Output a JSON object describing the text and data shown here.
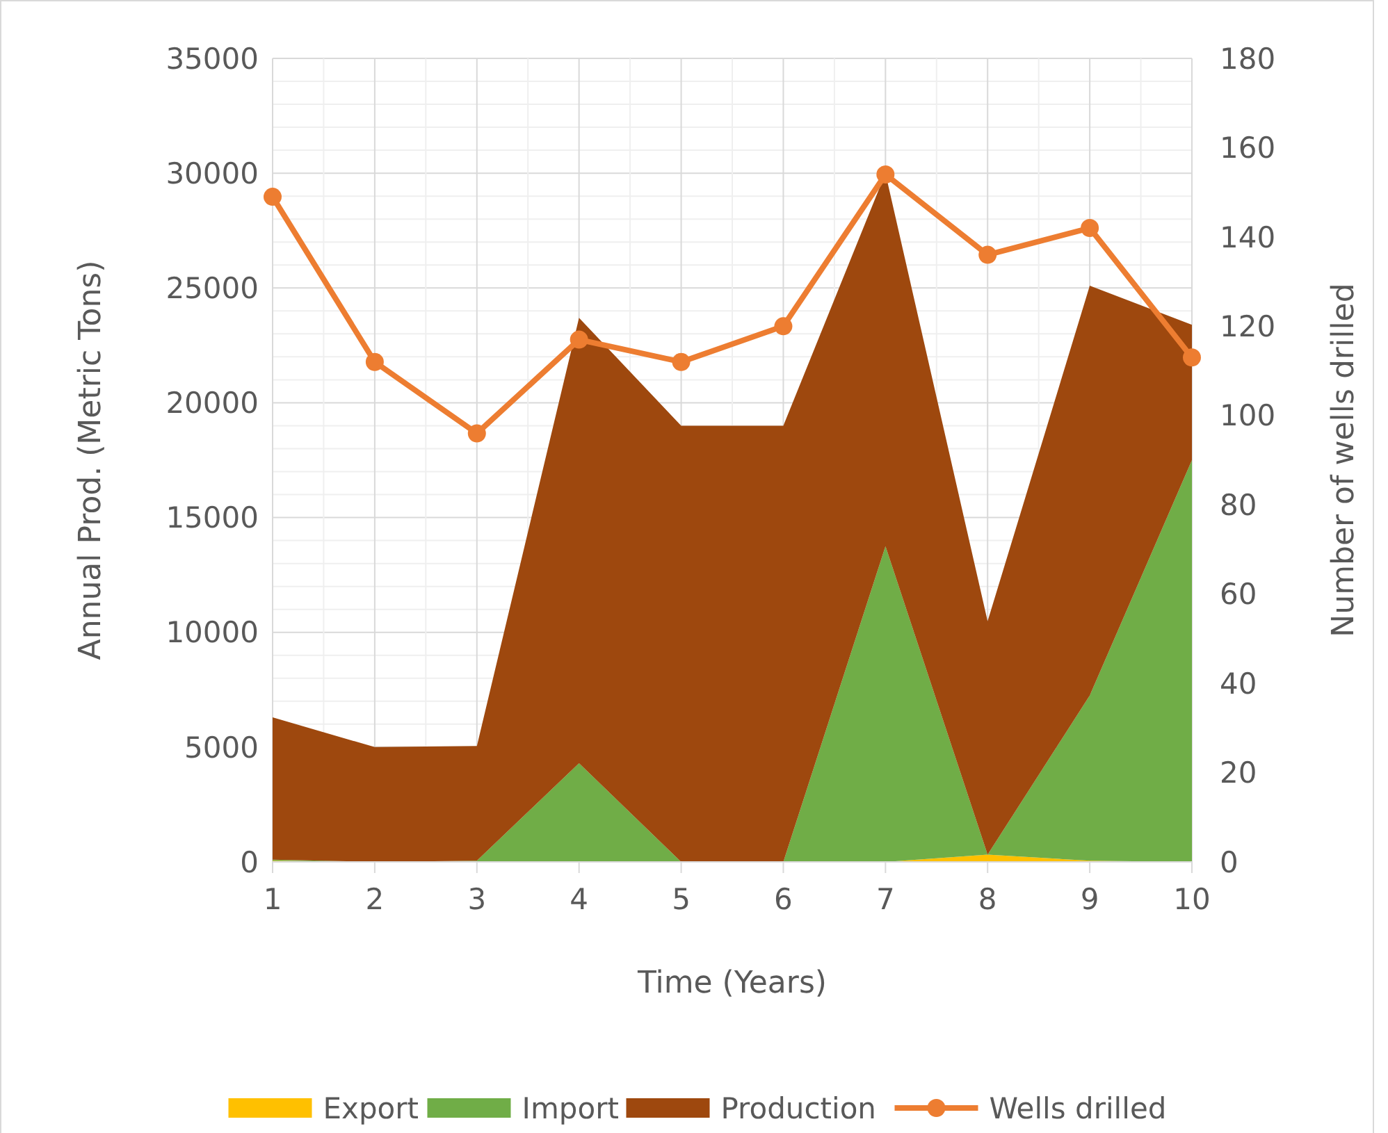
{
  "chart_data": {
    "type": "area",
    "stacked": true,
    "xlabel": "Time (Years)",
    "ylabel": "Annual Prod. (Metric Tons)",
    "y2label": "Number of wells drilled",
    "x": [
      1,
      2,
      3,
      4,
      5,
      6,
      7,
      8,
      9,
      10
    ],
    "xlim": [
      1,
      10
    ],
    "xticks": [
      1,
      2,
      3,
      4,
      5,
      6,
      7,
      8,
      9,
      10
    ],
    "ylim": [
      0,
      35000
    ],
    "yticks": [
      0,
      5000,
      10000,
      15000,
      20000,
      25000,
      30000,
      35000
    ],
    "y2lim": [
      0,
      180
    ],
    "y2ticks": [
      0,
      20,
      40,
      60,
      80,
      100,
      120,
      140,
      160,
      180
    ],
    "grid": true,
    "legend": "bottom",
    "series": [
      {
        "name": "Export",
        "color": "#ffc000",
        "values": [
          50,
          0,
          0,
          0,
          0,
          0,
          0,
          320,
          50,
          0
        ]
      },
      {
        "name": "Import",
        "color": "#70ad47",
        "values": [
          50,
          0,
          50,
          4300,
          0,
          0,
          13750,
          0,
          7200,
          17500
        ]
      },
      {
        "name": "Production",
        "color": "#9e480e",
        "values": [
          6200,
          5000,
          5000,
          19400,
          19000,
          19000,
          16250,
          10160,
          17850,
          5900
        ]
      },
      {
        "name": "Wells drilled",
        "type": "line",
        "axis": "y2",
        "color": "#ed7d31",
        "marker": "circle",
        "values": [
          149,
          112,
          96,
          117,
          112,
          120,
          154,
          136,
          142,
          113
        ]
      }
    ]
  }
}
